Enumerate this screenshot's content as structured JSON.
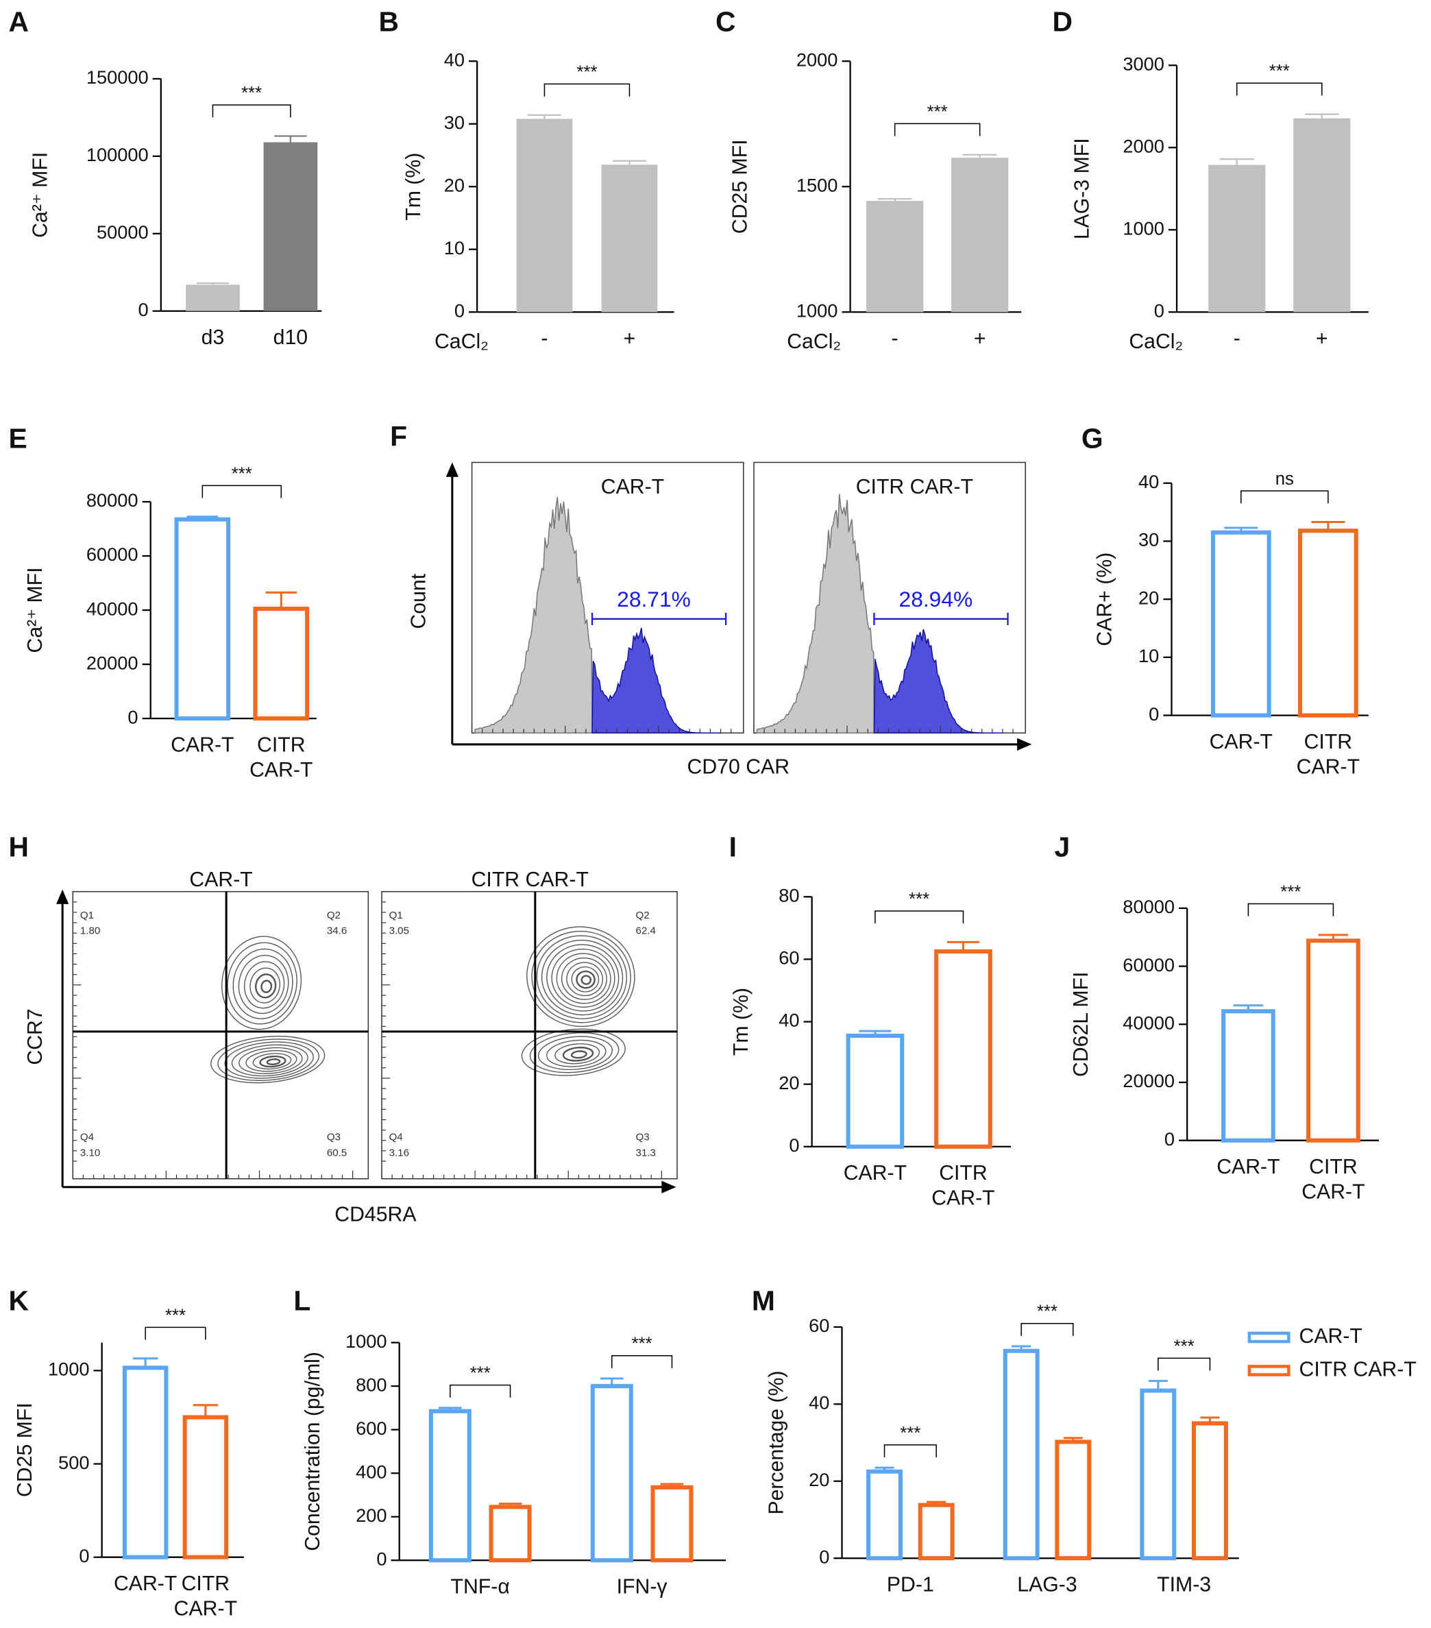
{
  "chart_data": [
    {
      "panel": "A",
      "type": "bar",
      "bar_style": "filled",
      "ylabel": "Ca²⁺ MFI",
      "categories": [
        "d3",
        "d10"
      ],
      "values": [
        17000,
        109000
      ],
      "errors": [
        1000,
        4000
      ],
      "colors": [
        "#c0c0c0",
        "#7f7f7f"
      ],
      "ylim": [
        0,
        150000
      ],
      "yticks": [
        0,
        50000,
        100000,
        150000
      ],
      "significance": "***"
    },
    {
      "panel": "B",
      "type": "bar",
      "bar_style": "filled",
      "ylabel": "Tm (%)",
      "xlabel": "CaCl₂",
      "categories": [
        "-",
        "+"
      ],
      "values": [
        30.8,
        23.5
      ],
      "errors": [
        0.6,
        0.6
      ],
      "colors": [
        "#c0c0c0",
        "#c0c0c0"
      ],
      "ylim": [
        0,
        40
      ],
      "yticks": [
        0,
        10,
        20,
        30,
        40
      ],
      "significance": "***"
    },
    {
      "panel": "C",
      "type": "bar",
      "bar_style": "filled",
      "ylabel": "CD25 MFI",
      "xlabel": "CaCl₂",
      "categories": [
        "-",
        "+"
      ],
      "values": [
        1443,
        1615
      ],
      "errors": [
        8,
        12
      ],
      "colors": [
        "#c0c0c0",
        "#c0c0c0"
      ],
      "ylim": [
        1000,
        2000
      ],
      "yticks": [
        1000,
        1500,
        2000
      ],
      "significance": "***"
    },
    {
      "panel": "D",
      "type": "bar",
      "bar_style": "filled",
      "ylabel": "LAG-3 MFI",
      "xlabel": "CaCl₂",
      "categories": [
        "-",
        "+"
      ],
      "values": [
        1790,
        2355
      ],
      "errors": [
        70,
        50
      ],
      "colors": [
        "#c0c0c0",
        "#c0c0c0"
      ],
      "ylim": [
        0,
        3000
      ],
      "yticks": [
        0,
        1000,
        2000,
        3000
      ],
      "significance": "***"
    },
    {
      "panel": "E",
      "type": "bar",
      "bar_style": "outline",
      "ylabel": "Ca²⁺ MFI",
      "categories": [
        "CAR-T",
        "CITR CAR-T"
      ],
      "values": [
        73500,
        40500
      ],
      "errors": [
        1000,
        6000
      ],
      "colors": [
        "#5ba6f2",
        "#f26a1f"
      ],
      "ylim": [
        0,
        80000
      ],
      "yticks": [
        0,
        20000,
        40000,
        60000,
        80000
      ],
      "significance": "***"
    },
    {
      "panel": "F",
      "type": "flow-histogram",
      "ylabel": "Count",
      "xlabel": "CD70 CAR",
      "plots": [
        {
          "title": "CAR-T",
          "gate": "28.71%"
        },
        {
          "title": "CITR CAR-T",
          "gate": "28.94%"
        }
      ]
    },
    {
      "panel": "G",
      "type": "bar",
      "bar_style": "outline",
      "ylabel": "CAR+ (%)",
      "categories": [
        "CAR-T",
        "CITR CAR-T"
      ],
      "values": [
        31.5,
        31.8
      ],
      "errors": [
        0.8,
        1.5
      ],
      "colors": [
        "#5ba6f2",
        "#f26a1f"
      ],
      "ylim": [
        0,
        40
      ],
      "yticks": [
        0,
        10,
        20,
        30,
        40
      ],
      "significance": "ns"
    },
    {
      "panel": "H",
      "type": "flow-contour",
      "ylabel": "CCR7",
      "xlabel": "CD45RA",
      "plots": [
        {
          "title": "CAR-T",
          "quadrants": [
            {
              "name": "Q1",
              "value": "1.80"
            },
            {
              "name": "Q2",
              "value": "34.6"
            },
            {
              "name": "Q3",
              "value": "60.5"
            },
            {
              "name": "Q4",
              "value": "3.10"
            }
          ]
        },
        {
          "title": "CITR CAR-T",
          "quadrants": [
            {
              "name": "Q1",
              "value": "3.05"
            },
            {
              "name": "Q2",
              "value": "62.4"
            },
            {
              "name": "Q3",
              "value": "31.3"
            },
            {
              "name": "Q4",
              "value": "3.16"
            }
          ]
        }
      ]
    },
    {
      "panel": "I",
      "type": "bar",
      "bar_style": "outline",
      "ylabel": "Tm (%)",
      "categories": [
        "CAR-T",
        "CITR CAR-T"
      ],
      "values": [
        35.5,
        62.5
      ],
      "errors": [
        1.5,
        3
      ],
      "colors": [
        "#5ba6f2",
        "#f26a1f"
      ],
      "ylim": [
        0,
        80
      ],
      "yticks": [
        0,
        20,
        40,
        60,
        80
      ],
      "significance": "***"
    },
    {
      "panel": "J",
      "type": "bar",
      "bar_style": "outline",
      "ylabel": "CD62L MFI",
      "categories": [
        "CAR-T",
        "CITR CAR-T"
      ],
      "values": [
        44500,
        68800
      ],
      "errors": [
        2000,
        2000
      ],
      "colors": [
        "#5ba6f2",
        "#f26a1f"
      ],
      "ylim": [
        0,
        80000
      ],
      "yticks": [
        0,
        20000,
        40000,
        60000,
        80000
      ],
      "significance": "***"
    },
    {
      "panel": "K",
      "type": "bar",
      "bar_style": "outline",
      "ylabel": "CD25 MFI",
      "categories": [
        "CAR-T",
        "CITR CAR-T"
      ],
      "values": [
        1015,
        750
      ],
      "errors": [
        50,
        65
      ],
      "colors": [
        "#5ba6f2",
        "#f26a1f"
      ],
      "ylim": [
        0,
        1150
      ],
      "yticks": [
        0,
        500,
        1000
      ],
      "significance": "***"
    },
    {
      "panel": "L",
      "type": "bar",
      "bar_style": "outline",
      "ylabel": "Concentration (pg/ml)",
      "categories": [
        "TNF-α",
        "IFN-γ"
      ],
      "series": [
        {
          "name": "CAR-T",
          "color": "#5ba6f2",
          "values": [
            685,
            800
          ],
          "errors": [
            15,
            35
          ]
        },
        {
          "name": "CITR CAR-T",
          "color": "#f26a1f",
          "values": [
            245,
            335
          ],
          "errors": [
            15,
            15
          ]
        }
      ],
      "ylim": [
        0,
        1000
      ],
      "yticks": [
        0,
        200,
        400,
        600,
        800,
        1000
      ],
      "significance": [
        "***",
        "***"
      ]
    },
    {
      "panel": "M",
      "type": "bar",
      "bar_style": "outline",
      "ylabel": "Percentage (%)",
      "categories": [
        "PD-1",
        "LAG-3",
        "TIM-3"
      ],
      "series": [
        {
          "name": "CAR-T",
          "color": "#5ba6f2",
          "values": [
            22.5,
            53.8,
            43.5
          ],
          "errors": [
            1,
            1.2,
            2.5
          ]
        },
        {
          "name": "CITR CAR-T",
          "color": "#f26a1f",
          "values": [
            13.8,
            30.2,
            35
          ],
          "errors": [
            0.8,
            1,
            1.5
          ]
        }
      ],
      "ylim": [
        0,
        60
      ],
      "yticks": [
        0,
        20,
        40,
        60
      ],
      "significance": [
        "***",
        "***",
        "***"
      ],
      "legend": "upper right"
    }
  ]
}
